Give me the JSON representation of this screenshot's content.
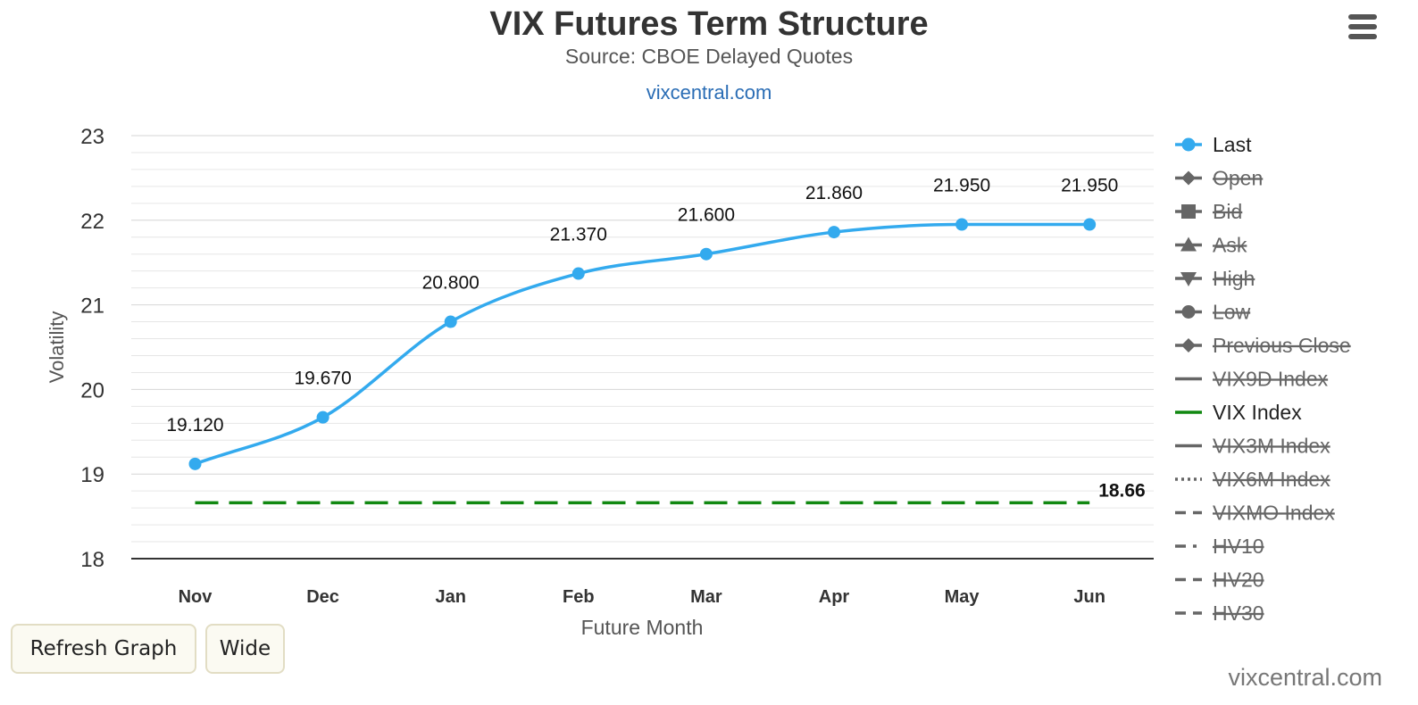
{
  "header": {
    "title": "VIX Futures Term Structure",
    "subtitle": "Source: CBOE Delayed Quotes",
    "link": "vixcentral.com"
  },
  "menu": {
    "icon": "hamburger-menu-icon"
  },
  "buttons": {
    "refresh": "Refresh Graph",
    "wide": "Wide"
  },
  "credit": "vixcentral.com",
  "chart_data": {
    "type": "line",
    "title": "VIX Futures Term Structure",
    "subtitle": "Source: CBOE Delayed Quotes",
    "xlabel": "Future Month",
    "ylabel": "Volatility",
    "ylim": [
      18,
      23
    ],
    "y_ticks": [
      18,
      19,
      20,
      21,
      22,
      23
    ],
    "grid": true,
    "legend_position": "right",
    "categories": [
      "Nov",
      "Dec",
      "Jan",
      "Feb",
      "Mar",
      "Apr",
      "May",
      "Jun"
    ],
    "series": [
      {
        "name": "Last",
        "values": [
          19.12,
          19.67,
          20.8,
          21.37,
          21.6,
          21.86,
          21.95,
          21.95
        ],
        "labels": [
          "19.120",
          "19.670",
          "20.800",
          "21.370",
          "21.600",
          "21.860",
          "21.950",
          "21.950"
        ],
        "color": "#33aaee",
        "visible": true
      },
      {
        "name": "VIX Index",
        "values": [
          18.66,
          18.66,
          18.66,
          18.66,
          18.66,
          18.66,
          18.66,
          18.66
        ],
        "end_label": "18.66",
        "color": "#118811",
        "style": "dashed",
        "visible": true
      }
    ],
    "legend": [
      {
        "name": "Last",
        "marker": "circle",
        "line": "solid",
        "visible": true,
        "color": "#33aaee"
      },
      {
        "name": "Open",
        "marker": "diamond",
        "line": "solid",
        "visible": false,
        "color": "#666666"
      },
      {
        "name": "Bid",
        "marker": "square",
        "line": "solid",
        "visible": false,
        "color": "#666666"
      },
      {
        "name": "Ask",
        "marker": "triangle",
        "line": "solid",
        "visible": false,
        "color": "#666666"
      },
      {
        "name": "High",
        "marker": "triangle-down",
        "line": "solid",
        "visible": false,
        "color": "#666666"
      },
      {
        "name": "Low",
        "marker": "circle",
        "line": "solid",
        "visible": false,
        "color": "#666666"
      },
      {
        "name": "Previous Close",
        "marker": "diamond",
        "line": "solid",
        "visible": false,
        "color": "#666666"
      },
      {
        "name": "VIX9D Index",
        "marker": "none",
        "line": "solid",
        "visible": false,
        "color": "#666666"
      },
      {
        "name": "VIX Index",
        "marker": "none",
        "line": "solid",
        "visible": true,
        "color": "#118811"
      },
      {
        "name": "VIX3M Index",
        "marker": "none",
        "line": "solid",
        "visible": false,
        "color": "#666666"
      },
      {
        "name": "VIX6M Index",
        "marker": "none",
        "line": "dotted",
        "visible": false,
        "color": "#666666"
      },
      {
        "name": "VIXMO Index",
        "marker": "none",
        "line": "dashed",
        "visible": false,
        "color": "#666666"
      },
      {
        "name": "HV10",
        "marker": "none",
        "line": "dashdot",
        "visible": false,
        "color": "#666666"
      },
      {
        "name": "HV20",
        "marker": "none",
        "line": "dashed",
        "visible": false,
        "color": "#666666"
      },
      {
        "name": "HV30",
        "marker": "none",
        "line": "dashed",
        "visible": false,
        "color": "#666666"
      }
    ]
  }
}
